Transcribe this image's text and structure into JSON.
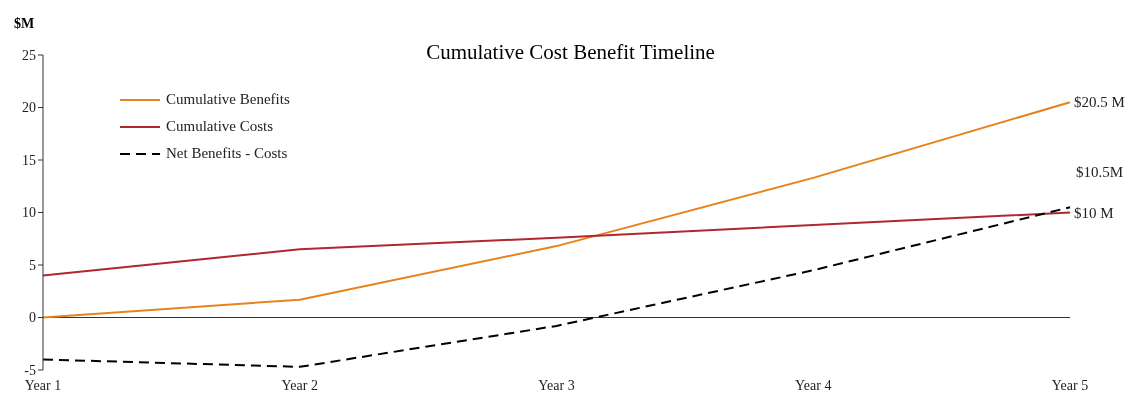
{
  "chart_data": {
    "type": "line",
    "title": "Cumulative Cost Benefit Timeline",
    "ylabel": "$M",
    "categories": [
      "Year 1",
      "Year 2",
      "Year 3",
      "Year 4",
      "Year 5"
    ],
    "series": [
      {
        "name": "Cumulative Benefits",
        "color": "#e8821e",
        "values": [
          0,
          1.7,
          6.8,
          13.3,
          20.5
        ],
        "value_labels": [
          null,
          null,
          null,
          null,
          "$20.5 M"
        ],
        "line_style": "solid"
      },
      {
        "name": "Cumulative Costs",
        "color": "#b0282e",
        "values": [
          4,
          6.5,
          7.6,
          8.8,
          10
        ],
        "value_labels": [
          null,
          null,
          null,
          null,
          "$10 M"
        ],
        "line_style": "solid"
      },
      {
        "name": "Net Benefits - Costs",
        "color": "#000000",
        "values": [
          -4,
          -4.7,
          -0.8,
          4.5,
          10.5
        ],
        "value_labels": [
          null,
          null,
          null,
          null,
          "$10.5M"
        ],
        "line_style": "dashed"
      }
    ],
    "ylim": [
      -5,
      25
    ],
    "yticks": [
      -5,
      0,
      5,
      10,
      15,
      20,
      25
    ],
    "ref_lines": [
      {
        "axis": "y",
        "value": 0,
        "color": "#333333"
      }
    ],
    "grid": false,
    "legend": "top left",
    "marker": "none"
  }
}
